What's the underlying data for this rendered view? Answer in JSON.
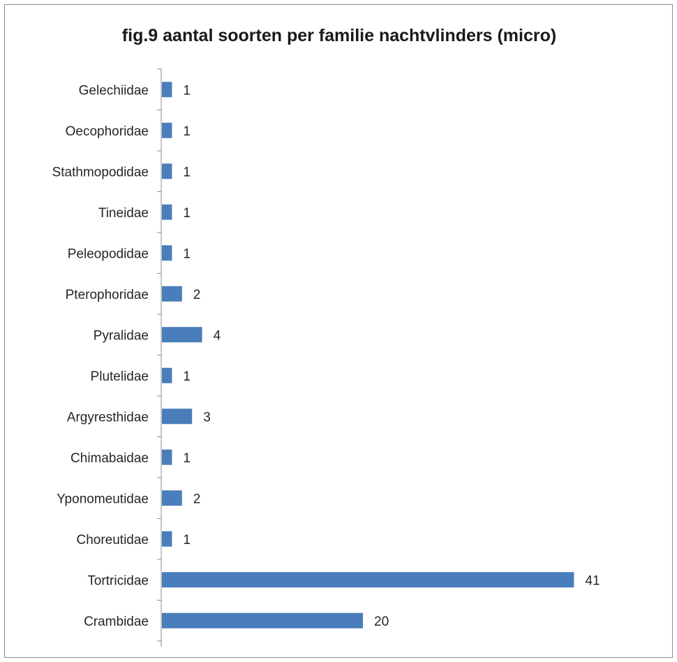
{
  "chart_data": {
    "type": "bar",
    "orientation": "horizontal",
    "title": "fig.9 aantal soorten per familie nachtvlinders (micro)",
    "categories": [
      "Gelechiidae",
      "Oecophoridae",
      "Stathmopodidae",
      "Tineidae",
      "Peleopodidae",
      "Pterophoridae",
      "Pyralidae",
      "Plutelidae",
      "Argyresthidae",
      "Chimabaidae",
      "Yponomeutidae",
      "Choreutidae",
      "Tortricidae",
      "Crambidae"
    ],
    "values": [
      1,
      1,
      1,
      1,
      1,
      2,
      4,
      1,
      3,
      1,
      2,
      1,
      41,
      20
    ],
    "xlim": [
      0,
      41
    ],
    "grid": false,
    "legend": false,
    "data_labels": true,
    "bar_color": "#4a7ebb"
  }
}
